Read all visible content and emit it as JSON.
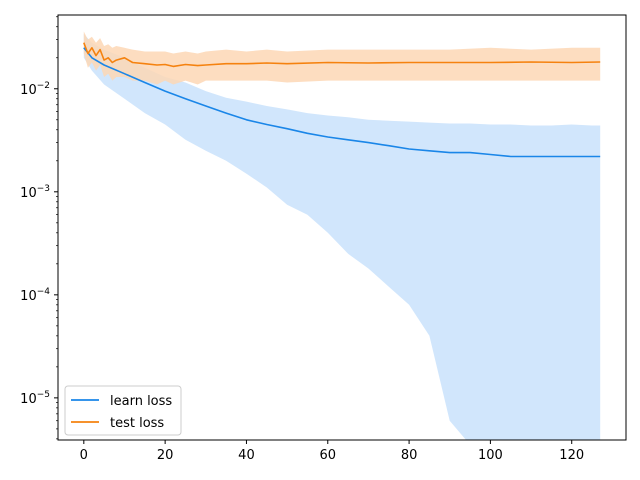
{
  "chart_data": {
    "type": "line",
    "title": "",
    "xlabel": "",
    "ylabel": "",
    "xlim": [
      -6.35,
      133.35
    ],
    "ylim": [
      3.9e-06,
      0.052
    ],
    "yscale": "log",
    "grid": false,
    "legend_position": "lower-left",
    "x_ticks": [
      0,
      20,
      40,
      60,
      80,
      100,
      120
    ],
    "x_tick_labels": [
      "0",
      "20",
      "40",
      "60",
      "80",
      "100",
      "120"
    ],
    "y_ticks": [
      1e-05,
      0.0001,
      0.001,
      0.01
    ],
    "y_tick_labels": [
      {
        "base": "10",
        "exp": "−5"
      },
      {
        "base": "10",
        "exp": "−4"
      },
      {
        "base": "10",
        "exp": "−3"
      },
      {
        "base": "10",
        "exp": "−2"
      }
    ],
    "series": [
      {
        "name": "learn loss",
        "color": "#1a86e8",
        "band_color": "#c9e2fb",
        "x": [
          0,
          2,
          5,
          10,
          15,
          20,
          25,
          30,
          35,
          40,
          45,
          50,
          55,
          60,
          65,
          70,
          75,
          80,
          85,
          90,
          95,
          100,
          105,
          110,
          115,
          120,
          125,
          127
        ],
        "y": [
          0.025,
          0.02,
          0.017,
          0.014,
          0.0115,
          0.0095,
          0.008,
          0.0068,
          0.0058,
          0.005,
          0.0045,
          0.0041,
          0.0037,
          0.0034,
          0.0032,
          0.003,
          0.0028,
          0.0026,
          0.0025,
          0.0024,
          0.0024,
          0.0023,
          0.0022,
          0.0022,
          0.0022,
          0.0022,
          0.0022,
          0.0022
        ],
        "upper": [
          0.034,
          0.028,
          0.024,
          0.02,
          0.016,
          0.013,
          0.0115,
          0.0095,
          0.0082,
          0.0075,
          0.0068,
          0.0063,
          0.0058,
          0.0055,
          0.0053,
          0.005,
          0.0049,
          0.0048,
          0.0047,
          0.0046,
          0.0046,
          0.0045,
          0.0045,
          0.0044,
          0.0044,
          0.0045,
          0.0044,
          0.0044
        ],
        "lower": [
          0.02,
          0.015,
          0.011,
          0.008,
          0.0058,
          0.0045,
          0.0032,
          0.0025,
          0.002,
          0.0015,
          0.0011,
          0.00075,
          0.0006,
          0.0004,
          0.00025,
          0.00018,
          0.00012,
          8e-05,
          4e-05,
          6e-06,
          3.5e-06,
          3.5e-06,
          3.5e-06,
          3.5e-06,
          3.5e-06,
          3.5e-06,
          3.5e-06,
          3.5e-06
        ]
      },
      {
        "name": "test loss",
        "color": "#f5820f",
        "band_color": "#fdd7b5",
        "x": [
          0,
          1,
          2,
          3,
          4,
          5,
          6,
          7,
          8,
          10,
          12,
          15,
          18,
          20,
          22,
          25,
          28,
          30,
          35,
          40,
          45,
          50,
          60,
          70,
          80,
          90,
          100,
          110,
          120,
          127
        ],
        "y": [
          0.028,
          0.022,
          0.025,
          0.021,
          0.024,
          0.019,
          0.02,
          0.018,
          0.019,
          0.02,
          0.018,
          0.0175,
          0.017,
          0.0172,
          0.0165,
          0.0172,
          0.0168,
          0.017,
          0.0175,
          0.0175,
          0.0178,
          0.0175,
          0.018,
          0.0178,
          0.018,
          0.018,
          0.018,
          0.0182,
          0.018,
          0.0182
        ],
        "upper": [
          0.036,
          0.03,
          0.032,
          0.028,
          0.031,
          0.026,
          0.027,
          0.025,
          0.026,
          0.025,
          0.024,
          0.023,
          0.023,
          0.023,
          0.022,
          0.023,
          0.022,
          0.023,
          0.024,
          0.023,
          0.024,
          0.023,
          0.024,
          0.024,
          0.024,
          0.024,
          0.025,
          0.024,
          0.025,
          0.025
        ],
        "lower": [
          0.022,
          0.016,
          0.018,
          0.015,
          0.017,
          0.013,
          0.014,
          0.012,
          0.013,
          0.013,
          0.012,
          0.012,
          0.011,
          0.012,
          0.011,
          0.012,
          0.011,
          0.012,
          0.012,
          0.012,
          0.012,
          0.0115,
          0.012,
          0.012,
          0.012,
          0.012,
          0.012,
          0.012,
          0.012,
          0.012
        ]
      }
    ]
  }
}
